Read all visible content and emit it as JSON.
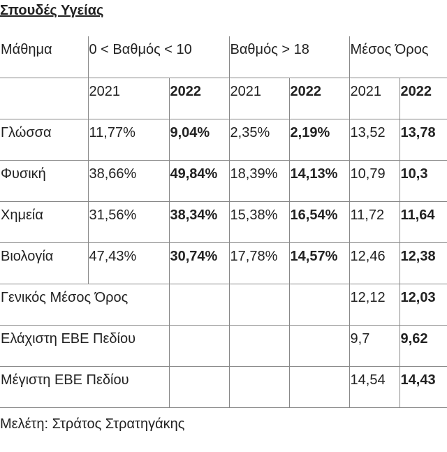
{
  "title": "Σπουδές Υγείας",
  "table": {
    "header": [
      "Μάθημα",
      "0 < Βαθμός < 10",
      "Βαθμός > 18",
      "Μέσος Όρος"
    ],
    "years": [
      "2021",
      "2022",
      "2021",
      "2022",
      "2021",
      "2022"
    ],
    "rows": [
      [
        "Γλώσσα",
        "11,77%",
        "9,04%",
        "2,35%",
        "2,19%",
        "13,52",
        "13,78"
      ],
      [
        "Φυσική",
        "38,66%",
        "49,84%",
        "18,39%",
        "14,13%",
        "10,79",
        "10,3"
      ],
      [
        "Χημεία",
        "31,56%",
        "38,34%",
        "15,38%",
        "16,54%",
        "11,72",
        "11,64"
      ],
      [
        "Βιολογία",
        "47,43%",
        "30,74%",
        "17,78%",
        "14,57%",
        "12,46",
        "12,38"
      ]
    ],
    "summary": [
      [
        "Γενικός Μέσος Όρος",
        "12,12",
        "12,03"
      ],
      [
        "Ελάχιστη ΕΒΕ Πεδίου",
        "9,7",
        "9,62"
      ],
      [
        "Μέγιστη ΕΒΕ Πεδίου",
        "14,54",
        "14,43"
      ]
    ]
  },
  "footer": "Μελέτη: Στράτος Στρατηγάκης"
}
